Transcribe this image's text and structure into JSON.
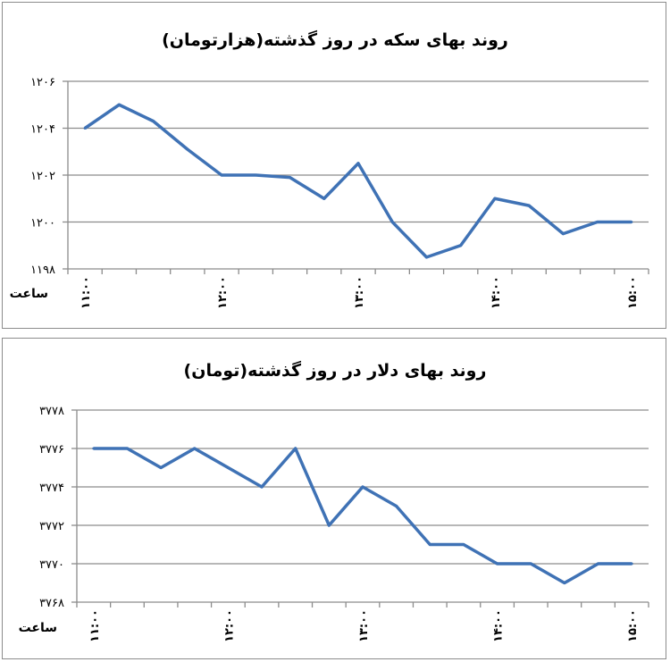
{
  "chart_data": [
    {
      "type": "line",
      "title": "روند بهای سکه در روز گذشته(هزارتومان)",
      "xlabel": "ساعت",
      "ylabel": "",
      "ylim": [
        1198,
        1206
      ],
      "yticks": [
        1198,
        1200,
        1202,
        1204,
        1206
      ],
      "ytick_labels": [
        "۱۱۹۸",
        "۱۲۰۰",
        "۱۲۰۲",
        "۱۲۰۴",
        "۱۲۰۶"
      ],
      "categories": [
        "۱۱:۰۰",
        "",
        "",
        "",
        "۱۲:۰۰",
        "",
        "",
        "",
        "۱۳:۰۰",
        "",
        "",
        "",
        "۱۴:۰۰",
        "",
        "",
        "",
        "۱۵:۰۰"
      ],
      "values": [
        1204,
        1205,
        1204.3,
        1203.1,
        1202,
        1202,
        1201.9,
        1201,
        1202.5,
        1200,
        1198.5,
        1199,
        1201,
        1200.7,
        1199.5,
        1200,
        1200
      ],
      "grid": true,
      "line_color": "#3f72b5"
    },
    {
      "type": "line",
      "title": "روند بهای دلار در روز گذشته(تومان)",
      "xlabel": "ساعت",
      "ylabel": "",
      "ylim": [
        3768,
        3778
      ],
      "yticks": [
        3768,
        3770,
        3772,
        3774,
        3776,
        3778
      ],
      "ytick_labels": [
        "۳۷۶۸",
        "۳۷۷۰",
        "۳۷۷۲",
        "۳۷۷۴",
        "۳۷۷۶",
        "۳۷۷۸"
      ],
      "categories": [
        "۱۱:۰۰",
        "",
        "",
        "",
        "۱۲:۰۰",
        "",
        "",
        "",
        "۱۳:۰۰",
        "",
        "",
        "",
        "۱۴:۰۰",
        "",
        "",
        "",
        "۱۵:۰۰"
      ],
      "values": [
        3776,
        3776,
        3775,
        3776,
        3775,
        3774,
        3776,
        3772,
        3774,
        3773,
        3771,
        3771,
        3770,
        3770,
        3769,
        3770,
        3770
      ],
      "grid": true,
      "line_color": "#3f72b5"
    }
  ]
}
